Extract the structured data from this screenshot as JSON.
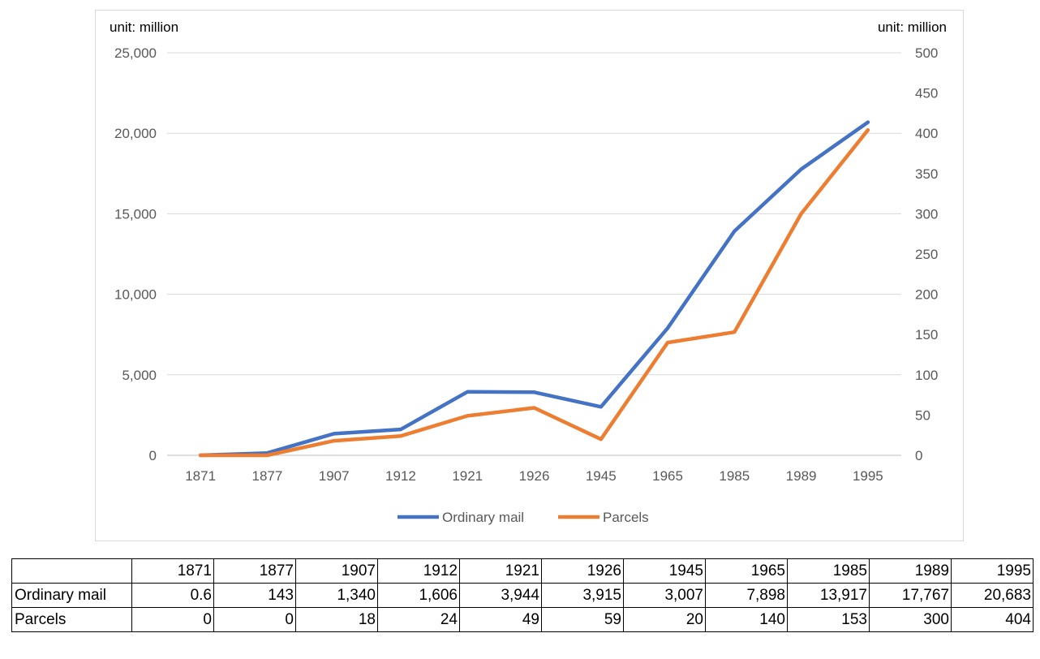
{
  "chart_data": {
    "type": "line",
    "unit_left": "unit: million",
    "unit_right": "unit: million",
    "categories": [
      "1871",
      "1877",
      "1907",
      "1912",
      "1921",
      "1926",
      "1945",
      "1965",
      "1985",
      "1989",
      "1995"
    ],
    "y_left": {
      "range": [
        0,
        25000
      ],
      "ticks": [
        "0",
        "5,000",
        "10,000",
        "15,000",
        "20,000",
        "25,000"
      ]
    },
    "y_right": {
      "range": [
        0,
        500
      ],
      "ticks": [
        "0",
        "50",
        "100",
        "150",
        "200",
        "250",
        "300",
        "350",
        "400",
        "450",
        "500"
      ]
    },
    "grid": true,
    "legend_position": "bottom",
    "series": [
      {
        "name": "Ordinary mail",
        "axis": "left",
        "color": "#4472c4",
        "values": [
          0.6,
          143,
          1340,
          1606,
          3944,
          3915,
          3007,
          7898,
          13917,
          17767,
          20683
        ]
      },
      {
        "name": "Parcels",
        "axis": "right",
        "color": "#ed7d31",
        "values": [
          0,
          0,
          18,
          24,
          49,
          59,
          20,
          140,
          153,
          300,
          404
        ]
      }
    ]
  },
  "table": {
    "header": [
      "",
      "1871",
      "1877",
      "1907",
      "1912",
      "1921",
      "1926",
      "1945",
      "1965",
      "1985",
      "1989",
      "1995"
    ],
    "rows": [
      [
        "Ordinary mail",
        "0.6",
        "143",
        "1,340",
        "1,606",
        "3,944",
        "3,915",
        "3,007",
        "7,898",
        "13,917",
        "17,767",
        "20,683"
      ],
      [
        "Parcels",
        "0",
        "0",
        "18",
        "24",
        "49",
        "59",
        "20",
        "140",
        "153",
        "300",
        "404"
      ]
    ]
  }
}
